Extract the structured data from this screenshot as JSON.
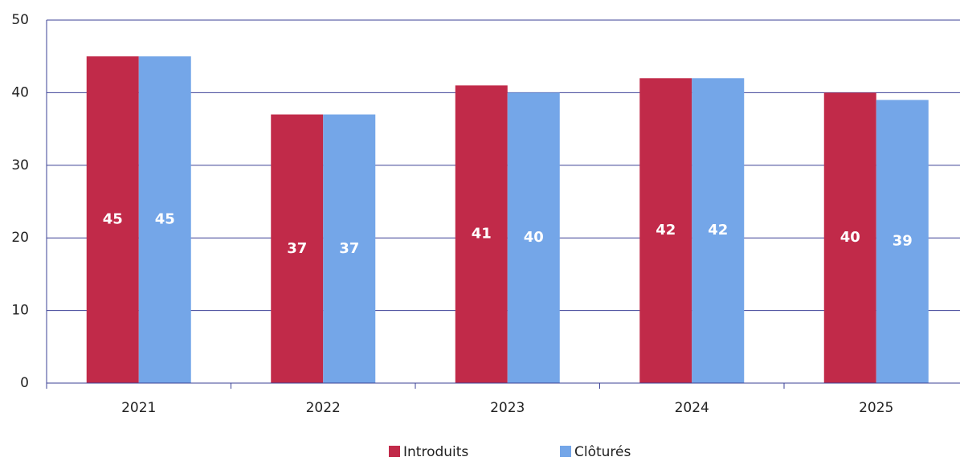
{
  "chart_data": {
    "type": "bar",
    "categories": [
      "2021",
      "2022",
      "2023",
      "2024",
      "2025"
    ],
    "series": [
      {
        "name": "Introduits",
        "color": "#c12a49",
        "values": [
          45,
          37,
          41,
          42,
          40
        ]
      },
      {
        "name": "Clôturés",
        "color": "#74a6e8",
        "values": [
          45,
          37,
          40,
          42,
          39
        ]
      }
    ],
    "ylim": [
      0,
      50
    ],
    "yticks": [
      0,
      10,
      20,
      30,
      40,
      50
    ],
    "grid": true,
    "legend": "bottom"
  }
}
